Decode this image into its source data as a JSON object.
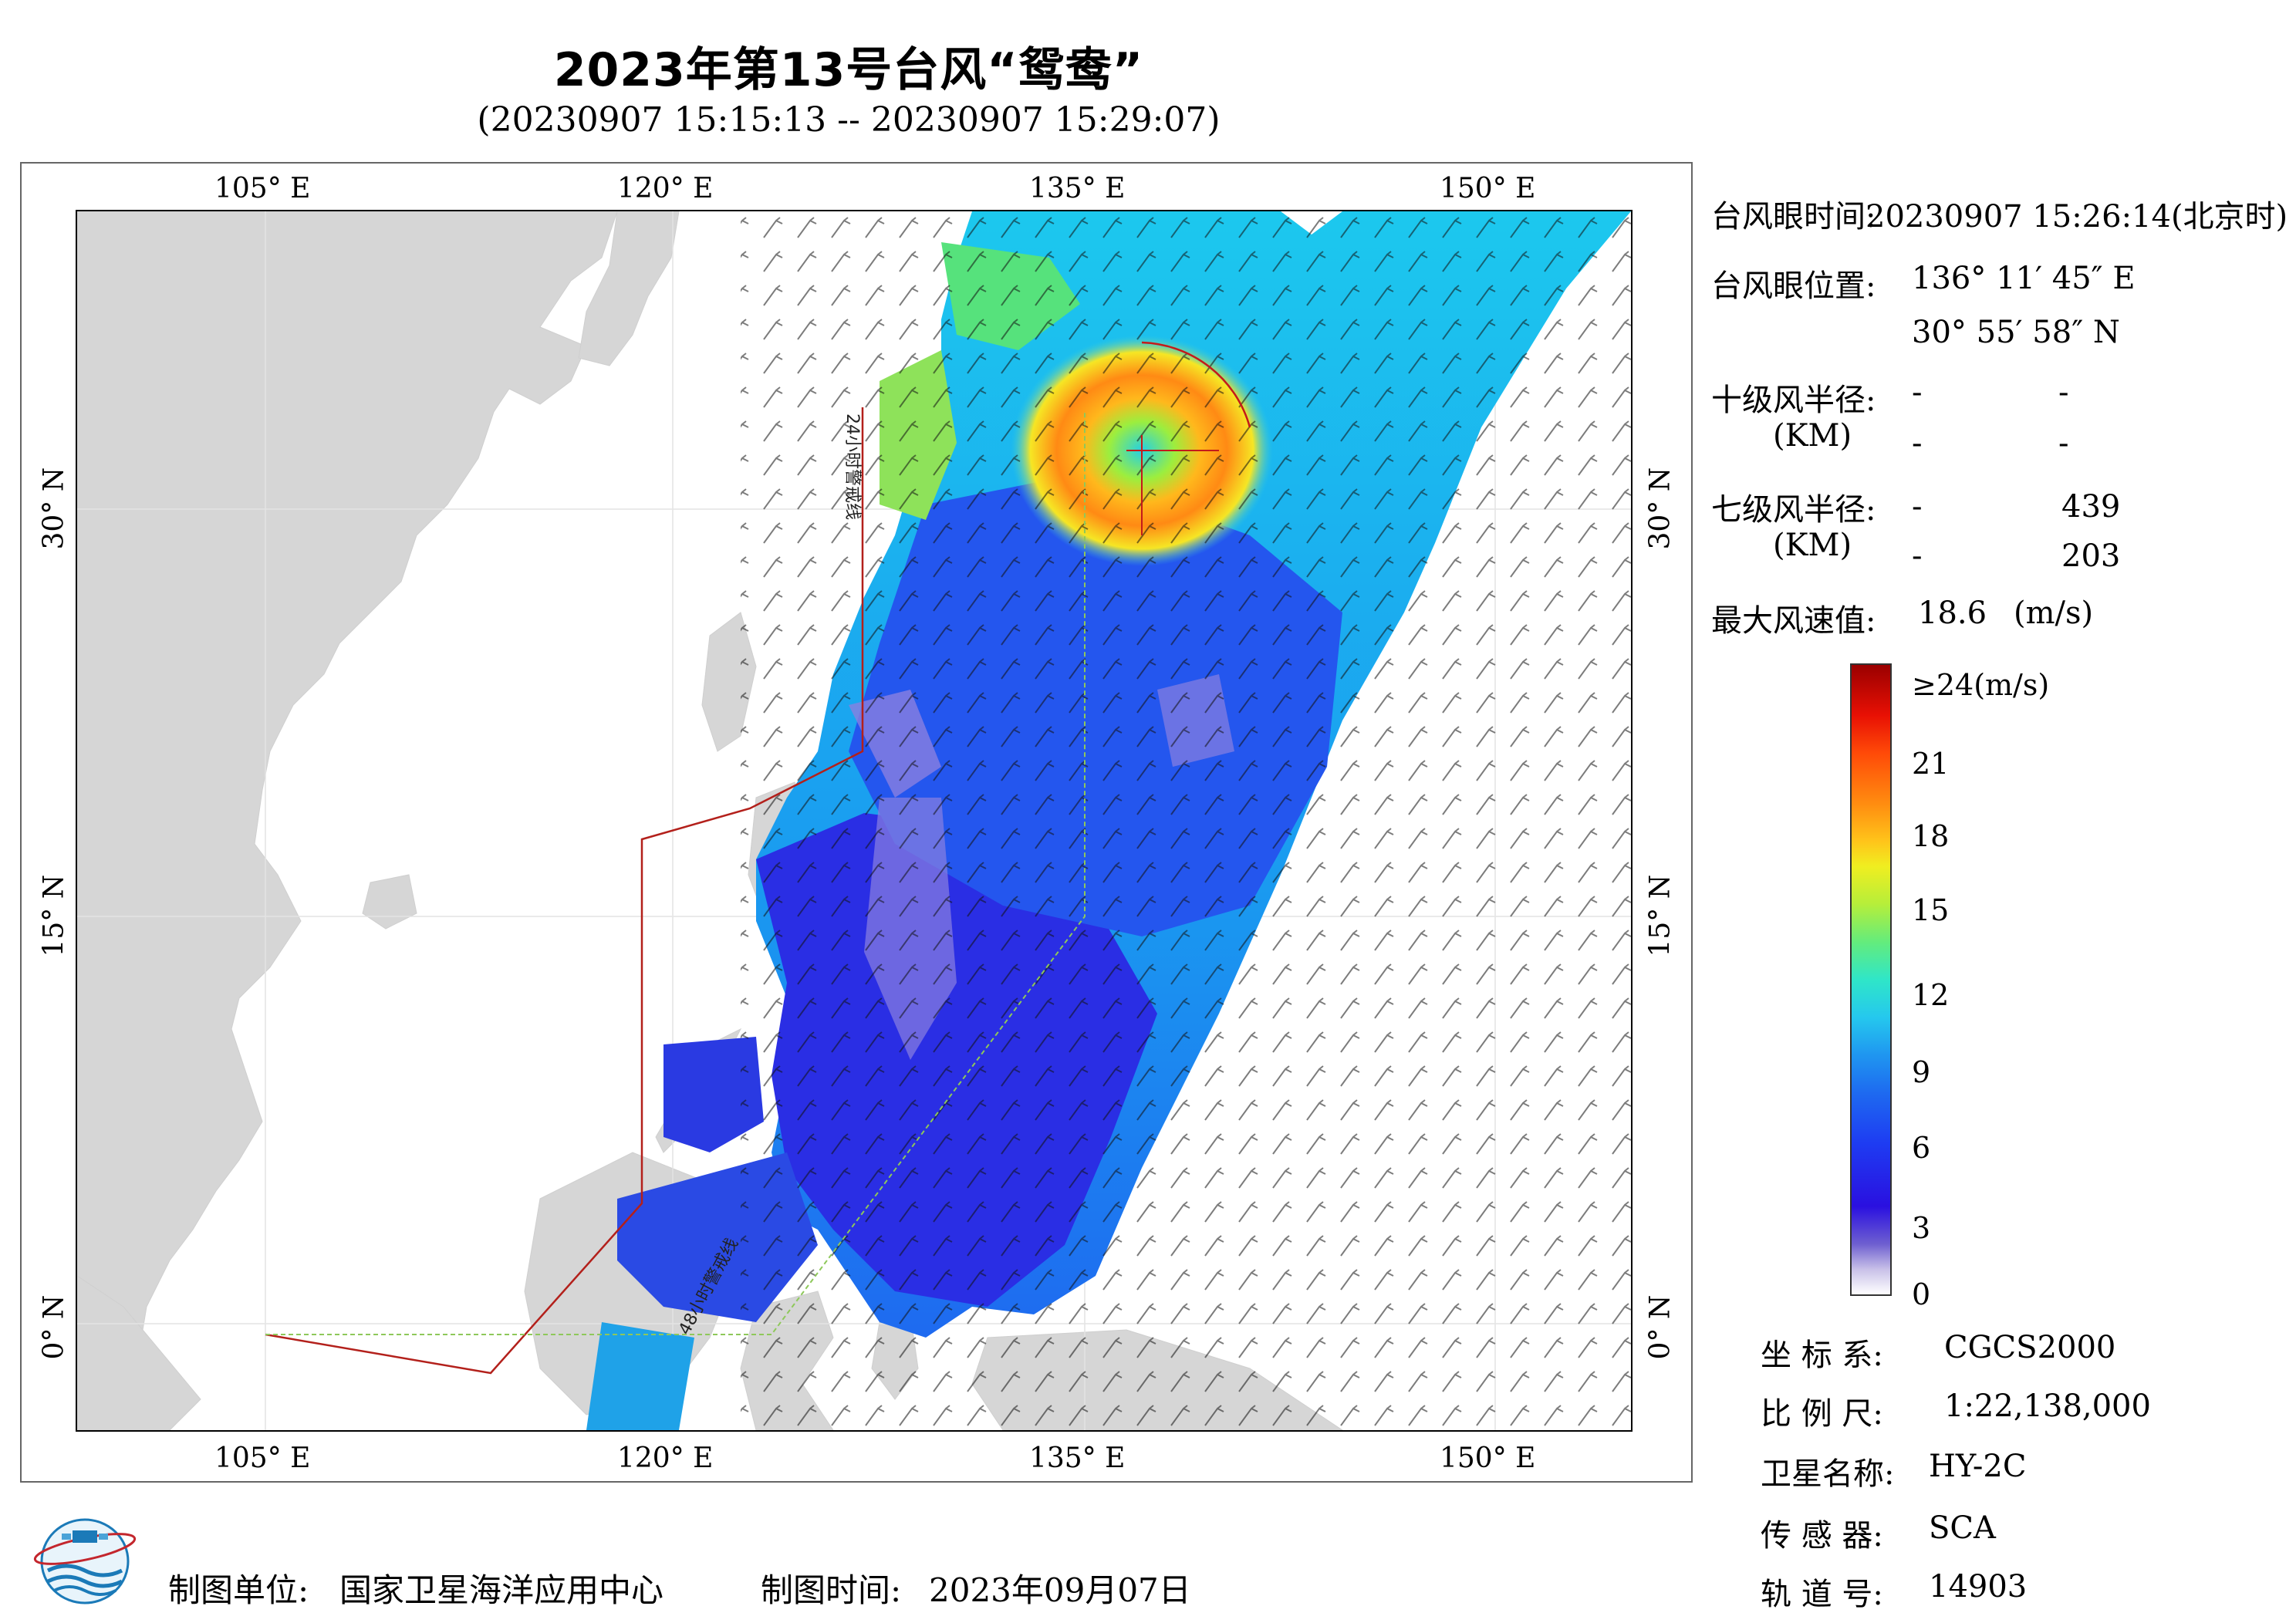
{
  "header": {
    "title": "2023年第13号台风“鸳鸯”",
    "subtitle": "(20230907 15:15:13 -- 20230907 15:29:07)"
  },
  "map": {
    "lon_labels": [
      "105° E",
      "120° E",
      "135° E",
      "150° E"
    ],
    "lat_labels": [
      "30° N",
      "15° N",
      "0° N"
    ],
    "lon_values": [
      105,
      120,
      135,
      150
    ],
    "lat_values": [
      30,
      15,
      0
    ],
    "lon_range": [
      98,
      155
    ],
    "lat_range": [
      -4,
      41
    ],
    "warning_label_24h": "24小时警戒线",
    "warning_label_48h": "48小时警戒线",
    "colors": {
      "land": "#d6d6d6",
      "sea": "#ffffff",
      "warning_line": "#b3201b",
      "warning_line_48h": "#8ec85a"
    }
  },
  "info": {
    "eye_time_label": "台风眼时间:",
    "eye_time_value": "20230907 15:26:14(北京时)",
    "eye_pos_label": "台风眼位置:",
    "eye_lon": "136° 11′ 45″ E",
    "eye_lat": "30° 55′ 58″ N",
    "r10_label": "十级风半径:",
    "r10_unit": "(KM)",
    "r10_values": [
      "-",
      "-",
      "-",
      "-"
    ],
    "r7_label": "七级风半径:",
    "r7_unit": "(KM)",
    "r7_values": [
      "-",
      "439",
      "-",
      "203"
    ],
    "max_wind_label": "最大风速值:",
    "max_wind_value": "18.6",
    "max_wind_unit": "(m/s)"
  },
  "colorbar": {
    "ticks": [
      "≥24(m/s)",
      "21",
      "18",
      "15",
      "12",
      "9",
      "6",
      "3",
      "0"
    ],
    "tick_values": [
      24,
      21,
      18,
      15,
      12,
      9,
      6,
      3,
      0
    ]
  },
  "meta": {
    "coord_label": "坐 标 系:",
    "coord_value": "CGCS2000",
    "scale_label": "比 例 尺:",
    "scale_value": "1:22,138,000",
    "sat_label": "卫星名称:",
    "sat_value": "HY-2C",
    "sensor_label": "传 感 器:",
    "sensor_value": "SCA",
    "orbit_label": "轨 道 号:",
    "orbit_value": "14903"
  },
  "footer": {
    "unit_label": "制图单位:",
    "unit_value": "国家卫星海洋应用中心",
    "time_label": "制图时间:",
    "time_value": "2023年09月07日"
  }
}
